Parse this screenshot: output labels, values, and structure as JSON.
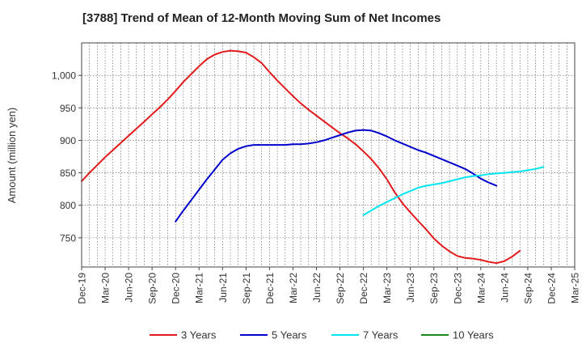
{
  "chart_data": {
    "type": "line",
    "title": "[3788]  Trend of Mean of 12-Month Moving Sum of Net Incomes",
    "xlabel": "",
    "ylabel": "Amount (million yen)",
    "ylim": [
      705,
      1050
    ],
    "x_ticks": [
      "Dec-19",
      "Mar-20",
      "Jun-20",
      "Sep-20",
      "Dec-20",
      "Mar-21",
      "Jun-21",
      "Sep-21",
      "Dec-21",
      "Mar-22",
      "Jun-22",
      "Sep-22",
      "Dec-22",
      "Mar-23",
      "Jun-23",
      "Sep-23",
      "Dec-23",
      "Mar-24",
      "Jun-24",
      "Sep-24",
      "Dec-24",
      "Mar-25"
    ],
    "y_ticks": [
      750,
      800,
      850,
      900,
      950,
      1000
    ],
    "y_tick_labels": [
      "750",
      "800",
      "850",
      "900",
      "950",
      "1,000"
    ],
    "grid": true,
    "legend_position": "bottom",
    "series": [
      {
        "name": "3 Years",
        "color": "#e31a1c",
        "x_start": "Dec-19",
        "values": [
          837,
          850,
          862,
          874,
          885,
          896,
          907,
          918,
          929,
          940,
          951,
          963,
          976,
          990,
          1002,
          1014,
          1025,
          1032,
          1036,
          1038,
          1037,
          1035,
          1028,
          1019,
          1005,
          992,
          980,
          968,
          957,
          947,
          938,
          929,
          920,
          911,
          903,
          894,
          883,
          871,
          857,
          840,
          820,
          803,
          789,
          776,
          763,
          749,
          738,
          729,
          722,
          719,
          718,
          716,
          713,
          711,
          714,
          721,
          730
        ]
      },
      {
        "name": "5 Years",
        "color": "#0000cc",
        "x_start": "Dec-20",
        "values": [
          775,
          792,
          808,
          824,
          840,
          855,
          870,
          880,
          887,
          891,
          893,
          893,
          893,
          893,
          893,
          894,
          894,
          895,
          897,
          900,
          904,
          908,
          912,
          915,
          916,
          915,
          911,
          906,
          900,
          895,
          890,
          885,
          881,
          876,
          871,
          866,
          861,
          856,
          849,
          841,
          835,
          830
        ]
      },
      {
        "name": "7 Years",
        "color": "#00e5ee",
        "x_start": "Dec-22",
        "values": [
          785,
          792,
          799,
          805,
          811,
          817,
          822,
          827,
          830,
          832,
          834,
          837,
          840,
          843,
          845,
          846,
          848,
          849,
          850,
          851,
          852,
          854,
          856,
          859
        ]
      },
      {
        "name": "10 Years",
        "color": "#1a8a1a",
        "x_start": "Dec-24",
        "values": []
      }
    ]
  }
}
